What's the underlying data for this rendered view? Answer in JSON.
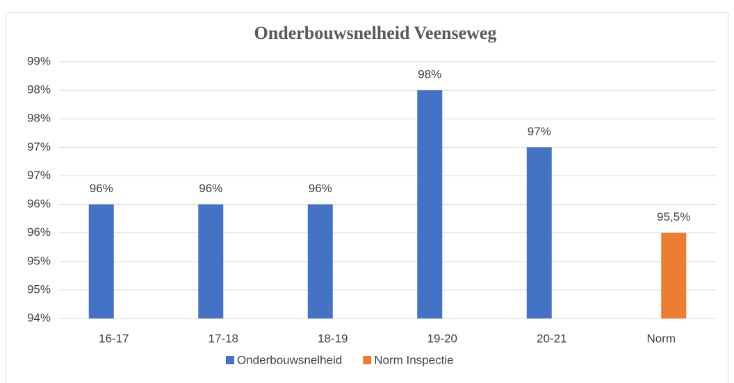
{
  "chart_data": {
    "type": "bar",
    "title": "Onderbouwsnelheid Veenseweg",
    "categories": [
      "16-17",
      "17-18",
      "18-19",
      "19-20",
      "20-21",
      "Norm"
    ],
    "series": [
      {
        "name": "Onderbouwsnelheid",
        "color": "#4472c4",
        "values": [
          96,
          96,
          96,
          98,
          97,
          null
        ],
        "value_labels": [
          "96%",
          "96%",
          "96%",
          "98%",
          "97%",
          null
        ]
      },
      {
        "name": "Norm Inspectie",
        "color": "#ed7d31",
        "values": [
          null,
          null,
          null,
          null,
          null,
          95.5
        ],
        "value_labels": [
          null,
          null,
          null,
          null,
          null,
          "95,5%"
        ]
      }
    ],
    "ylim": [
      94,
      98.5
    ],
    "yticks": [
      {
        "value": 94,
        "label": "94%"
      },
      {
        "value": 94.5,
        "label": "95%"
      },
      {
        "value": 95,
        "label": "95%"
      },
      {
        "value": 95.5,
        "label": "96%"
      },
      {
        "value": 96,
        "label": "96%"
      },
      {
        "value": 96.5,
        "label": "97%"
      },
      {
        "value": 97,
        "label": "97%"
      },
      {
        "value": 97.5,
        "label": "98%"
      },
      {
        "value": 98,
        "label": "98%"
      },
      {
        "value": 98.5,
        "label": "99%"
      }
    ],
    "grid": true,
    "legend": "bottom"
  }
}
